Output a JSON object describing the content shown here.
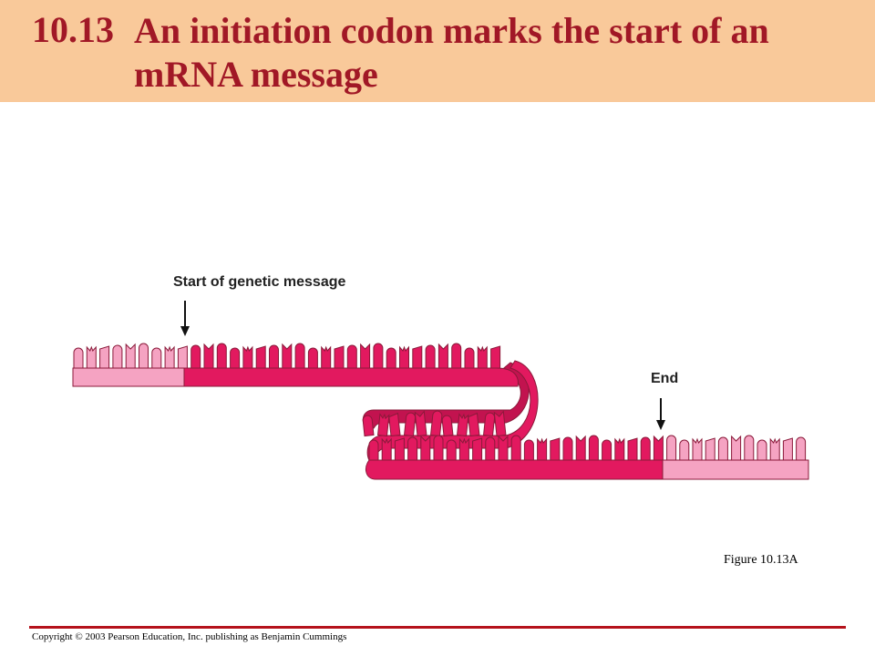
{
  "slide": {
    "number": "10.13",
    "title_line_1": "An initiation codon marks the start of an",
    "title_line_2": "mRNA message"
  },
  "diagram": {
    "start_label": "Start of genetic message",
    "end_label": "End",
    "figure_label": "Figure 10.13A",
    "colors": {
      "coding_region": "#e2195f",
      "noncoding_region": "#f5a3c2",
      "outline": "#8a1a3a"
    }
  },
  "footer": {
    "copyright": "Copyright © 2003 Pearson Education, Inc. publishing as Benjamin Cummings"
  }
}
